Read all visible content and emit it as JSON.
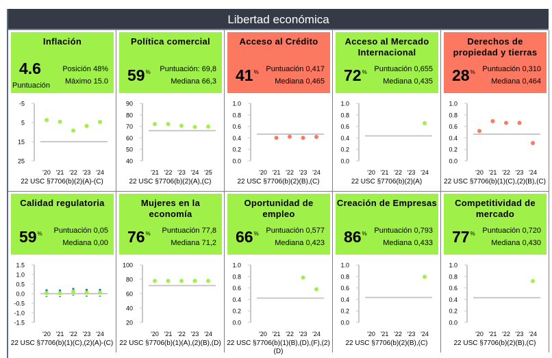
{
  "header": {
    "title": "Libertad económica"
  },
  "cards": [
    {
      "title": "Inflación",
      "score": "4.6",
      "score_sub": "Puntuación",
      "line1": "Posición 48%",
      "line2": "Máximo 15.0",
      "color": "green",
      "pct": false,
      "footer": "22 USC §7706(b)(2)(A)-(C)",
      "chart": {
        "ymin": -5,
        "ymax": 25,
        "inverted": true,
        "ticks": [
          "-5",
          "5",
          "15",
          "25"
        ],
        "tickvals": [
          -5,
          5,
          15,
          25
        ],
        "xlabels": [
          "'20",
          "'21",
          "'22",
          "'23",
          "'24"
        ],
        "points": [
          3.7,
          4.6,
          9.2,
          6.8,
          4.7
        ],
        "median": 15,
        "dot": "#a0f04a"
      }
    },
    {
      "title": "Política comercial",
      "score": "59",
      "pct_sign": "%",
      "line1": "Puntuación: 69,8",
      "line2": "Mediana 66,3",
      "color": "green",
      "pct": true,
      "footer": "22 USC §7706(b)(2)(A),(C)",
      "chart": {
        "ymin": 40,
        "ymax": 90,
        "ticks": [
          "90",
          "80",
          "70",
          "60",
          "50",
          "40"
        ],
        "tickvals": [
          90,
          80,
          70,
          60,
          50,
          40
        ],
        "xlabels": [
          "'21",
          "'22",
          "'23",
          "'24",
          "'25"
        ],
        "points": [
          72,
          72,
          70.5,
          69.5,
          69.8
        ],
        "median": 66.3,
        "dot": "#a0f04a"
      }
    },
    {
      "title": "Acceso al Crédito",
      "score": "41",
      "pct_sign": "%",
      "line1": "Puntuación 0,417",
      "line2": "Mediana 0,465",
      "color": "red",
      "pct": true,
      "footer": "22 USC §7706(b)(2)(B),(C)",
      "chart": {
        "ymin": 0,
        "ymax": 1,
        "ticks": [
          "1.0",
          "0.8",
          "0.6",
          "0.4",
          "0.2",
          "0.0"
        ],
        "tickvals": [
          1,
          0.8,
          0.6,
          0.4,
          0.2,
          0
        ],
        "xlabels": [
          "'20",
          "'21",
          "'22",
          "'23",
          "'24"
        ],
        "points": [
          null,
          0.4,
          0.42,
          0.4,
          0.417
        ],
        "median": 0.465,
        "dot": "#fc7860"
      }
    },
    {
      "title": "Acceso al Mercado Internacional",
      "score": "72",
      "pct_sign": "%",
      "line1": "Puntuación 0,655",
      "line2": "Mediana 0,435",
      "color": "green",
      "pct": true,
      "footer": "22 USC §7706(b)(2)(A)",
      "chart": {
        "ymin": 0,
        "ymax": 1,
        "ticks": [
          "1.0",
          "0.8",
          "0.6",
          "0.4",
          "0.2",
          "0.0"
        ],
        "tickvals": [
          1,
          0.8,
          0.6,
          0.4,
          0.2,
          0
        ],
        "xlabels": [
          "'20",
          "'21",
          "'22",
          "'23",
          "'24"
        ],
        "points": [
          null,
          null,
          null,
          null,
          0.655
        ],
        "median": 0.435,
        "dot": "#a0f04a"
      }
    },
    {
      "title": "Derechos de propiedad y tierras",
      "score": "28",
      "pct_sign": "%",
      "line1": "Puntuación 0,310",
      "line2": "Mediana 0,464",
      "color": "red",
      "pct": true,
      "footer": "22 USC §7706(b)(1)(C),(2)(B),(C)",
      "chart": {
        "ymin": 0,
        "ymax": 1,
        "ticks": [
          "1.0",
          "0.8",
          "0.6",
          "0.4",
          "0.2",
          "0.0"
        ],
        "tickvals": [
          1,
          0.8,
          0.6,
          0.4,
          0.2,
          0
        ],
        "xlabels": [
          "'20",
          "'21",
          "'22",
          "'23",
          "'24"
        ],
        "points": [
          0.52,
          0.69,
          0.66,
          0.66,
          0.31
        ],
        "median": 0.464,
        "dot": "#fc7860"
      }
    },
    {
      "title": "Calidad regulatoria",
      "score": "59",
      "pct_sign": "%",
      "line1": "Puntuación 0,05",
      "line2": "Mediana 0,00",
      "color": "green",
      "pct": true,
      "footer": "22 USC §7706(b)(1)(C),(2)(A)-(C)",
      "chart": {
        "ymin": -1.5,
        "ymax": 1.5,
        "ticks": [
          "1.5",
          "1.0",
          "0.5",
          "0.0",
          "-0.5",
          "-1.0",
          "-1.5"
        ],
        "tickvals": [
          1.5,
          1,
          0.5,
          0,
          -0.5,
          -1,
          -1.5
        ],
        "xlabels": [
          "'20",
          "'21",
          "'22",
          "'23",
          "'24"
        ],
        "points": [
          0.03,
          0.02,
          0.1,
          0.05,
          0.05
        ],
        "errors": [
          0.2,
          0.2,
          0.2,
          0.2,
          0.2
        ],
        "median": 0,
        "dot": "#a0f04a"
      }
    },
    {
      "title": "Mujeres en la economía",
      "score": "76",
      "pct_sign": "%",
      "line1": "Puntuación 77,8",
      "line2": "Mediana 71,2",
      "color": "green",
      "pct": true,
      "footer": "22 USC §7706(b)(1)(A),(2)(B),(D)",
      "chart": {
        "ymin": 20,
        "ymax": 100,
        "ticks": [
          "100",
          "80",
          "60",
          "40",
          "20"
        ],
        "tickvals": [
          100,
          80,
          60,
          40,
          20
        ],
        "xlabels": [
          "'20",
          "'21",
          "'22",
          "'23",
          "'24"
        ],
        "points": [
          77.8,
          77.8,
          77.8,
          77.8,
          77.8
        ],
        "median": 71.2,
        "dot": "#a0f04a"
      }
    },
    {
      "title": "Oportunidad de empleo",
      "score": "66",
      "pct_sign": "%",
      "line1": "Puntuación 0,577",
      "line2": "Mediana 0,423",
      "color": "green",
      "pct": true,
      "footer": "22 USC §7706(b)(1)(B),(D),(F),(2)(D)",
      "chart": {
        "ymin": 0,
        "ymax": 1,
        "ticks": [
          "1.0",
          "0.8",
          "0.6",
          "0.4",
          "0.2",
          "0.0"
        ],
        "tickvals": [
          1,
          0.8,
          0.6,
          0.4,
          0.2,
          0
        ],
        "xlabels": [
          "'20",
          "'21",
          "'22",
          "'23",
          "'24"
        ],
        "points": [
          null,
          null,
          null,
          0.78,
          0.577
        ],
        "median": 0.423,
        "dot": "#a0f04a"
      }
    },
    {
      "title": "Creación de Empresas",
      "score": "86",
      "pct_sign": "%",
      "line1": "Puntuación 0,793",
      "line2": "Mediana 0,433",
      "color": "green",
      "pct": true,
      "footer": "22 USC §7706(b)(2)(B),(C)",
      "chart": {
        "ymin": 0,
        "ymax": 1,
        "ticks": [
          "1.0",
          "0.8",
          "0.6",
          "0.4",
          "0.2",
          "0.0"
        ],
        "tickvals": [
          1,
          0.8,
          0.6,
          0.4,
          0.2,
          0
        ],
        "xlabels": [
          "'20",
          "'21",
          "'22",
          "'23",
          "'24"
        ],
        "points": [
          null,
          null,
          null,
          null,
          0.793
        ],
        "median": 0.433,
        "dot": "#a0f04a"
      }
    },
    {
      "title": "Competitividad de mercado",
      "score": "77",
      "pct_sign": "%",
      "line1": "Puntuación 0,720",
      "line2": "Mediana 0,430",
      "color": "green",
      "pct": true,
      "footer": "22 USC §7706(b)(2)(B),(C)",
      "chart": {
        "ymin": 0,
        "ymax": 1,
        "ticks": [
          "1.0",
          "0.8",
          "0.6",
          "0.4",
          "0.2",
          "0.0"
        ],
        "tickvals": [
          1,
          0.8,
          0.6,
          0.4,
          0.2,
          0
        ],
        "xlabels": [
          "'20",
          "'21",
          "'22",
          "'23",
          "'24"
        ],
        "points": [
          null,
          null,
          null,
          null,
          0.72
        ],
        "median": 0.43,
        "dot": "#a0f04a"
      }
    }
  ]
}
